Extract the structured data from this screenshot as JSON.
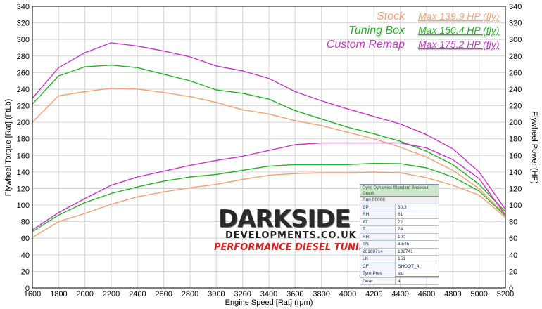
{
  "chart_data": {
    "type": "line",
    "xlabel": "Engine Speed [Rat] (rpm)",
    "ylabel_left": "Flywheel Torque [Rat] (FtLb)",
    "ylabel_right": "Flywheel Power (HP)",
    "xlim": [
      1600,
      5200
    ],
    "ylim": [
      0,
      340
    ],
    "x_ticks": [
      1600,
      1800,
      2000,
      2200,
      2400,
      2600,
      2800,
      3000,
      3200,
      3400,
      3600,
      3800,
      4000,
      4200,
      4400,
      4600,
      4800,
      5000,
      5200
    ],
    "y_ticks": [
      0,
      20,
      40,
      60,
      80,
      100,
      120,
      140,
      160,
      180,
      200,
      220,
      240,
      260,
      280,
      300,
      320,
      340
    ],
    "grid": true,
    "legend_position": "top-right",
    "x": [
      1600,
      1800,
      2000,
      2200,
      2400,
      2600,
      2800,
      3000,
      3200,
      3400,
      3600,
      3800,
      4000,
      4200,
      4400,
      4600,
      4800,
      5000,
      5200
    ],
    "series": [
      {
        "name": "Stock",
        "quantity": "torque",
        "color": "#f4a070",
        "values": [
          200,
          232,
          237,
          241,
          240,
          236,
          231,
          224,
          215,
          210,
          202,
          196,
          188,
          180,
          170,
          158,
          142,
          120,
          88
        ]
      },
      {
        "name": "Tuning Box",
        "quantity": "torque",
        "color": "#22b422",
        "values": [
          222,
          256,
          267,
          269,
          266,
          258,
          250,
          239,
          235,
          228,
          214,
          204,
          194,
          186,
          177,
          165,
          149,
          125,
          92
        ]
      },
      {
        "name": "Custom Remap",
        "quantity": "torque",
        "color": "#cc33cc",
        "values": [
          229,
          266,
          284,
          296,
          292,
          286,
          279,
          268,
          262,
          253,
          237,
          226,
          216,
          207,
          198,
          185,
          168,
          140,
          95
        ]
      },
      {
        "name": "Stock",
        "quantity": "power",
        "color": "#f4a070",
        "values": [
          61,
          80,
          90,
          101,
          110,
          116,
          121,
          125,
          131,
          136,
          138,
          139,
          139,
          139.9,
          139,
          133,
          124,
          112,
          85
        ]
      },
      {
        "name": "Tuning Box",
        "quantity": "power",
        "color": "#22b422",
        "values": [
          68,
          88,
          103,
          114,
          122,
          129,
          134,
          137,
          142,
          147,
          149,
          149,
          149,
          150.4,
          150,
          145,
          134,
          117,
          87
        ]
      },
      {
        "name": "Custom Remap",
        "quantity": "power",
        "color": "#cc33cc",
        "values": [
          70,
          91,
          108,
          124,
          134,
          141,
          148,
          154,
          159,
          166,
          173,
          175,
          175,
          175,
          175.2,
          169,
          155,
          132,
          88
        ]
      }
    ],
    "legend": [
      {
        "name": "Stock",
        "max": "Max 139.9 HP (fly)",
        "color": "#f4a070"
      },
      {
        "name": "Tuning Box",
        "max": "Max 150.4 HP (fly)",
        "color": "#22b422"
      },
      {
        "name": "Custom Remap",
        "max": "Max 175.2 HP (fly)",
        "color": "#cc33cc"
      }
    ]
  },
  "info_table": {
    "heading": "Dyno Dynamics Standard Shootout Graph",
    "run": "Run 00008",
    "rows": [
      {
        "k": "BP",
        "v": "30.3"
      },
      {
        "k": "RH",
        "v": "61"
      },
      {
        "k": "AT",
        "v": "72"
      },
      {
        "k": "T",
        "v": "74"
      },
      {
        "k": "RR",
        "v": "100"
      },
      {
        "k": "TN",
        "v": "3.545"
      },
      {
        "k": "20160714",
        "v": "132741"
      },
      {
        "k": "LK",
        "v": "151"
      },
      {
        "k": "CF",
        "v": "SHOOT_4"
      },
      {
        "k": "Tyre Pres",
        "v": "std"
      },
      {
        "k": "Gear",
        "v": "4"
      }
    ]
  },
  "logo": {
    "main": "DARKSIDE",
    "sub": "DEVELOPMENTS.CO.UK",
    "tagline": "PERFORMANCE DIESEL TUNING"
  }
}
